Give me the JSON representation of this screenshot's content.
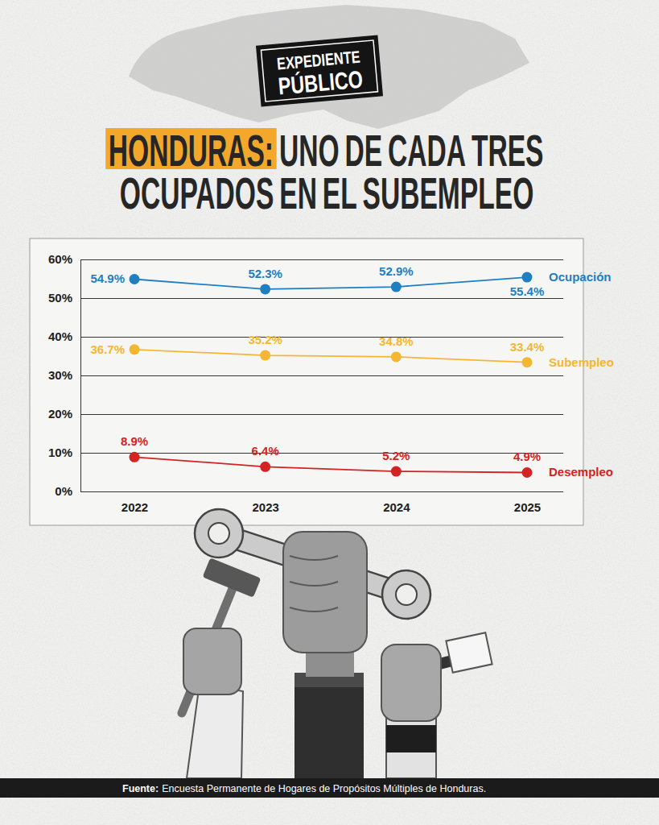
{
  "logo": [
    "EXPEDIENTE",
    "PÚBLICO"
  ],
  "chart_data": {
    "type": "line",
    "title": "HONDURAS: UNO DE CADA TRES OCUPADOS EN EL SUBEMPLEO",
    "categories": [
      "2022",
      "2023",
      "2024",
      "2025"
    ],
    "series": [
      {
        "name": "Ocupación",
        "color": "#1f7fc1",
        "values": [
          54.9,
          52.3,
          52.9,
          55.4
        ],
        "value_labels": [
          "54.9%",
          "52.3%",
          "52.9%",
          "55.4%"
        ]
      },
      {
        "name": "Subempleo",
        "color": "#f5b731",
        "values": [
          36.7,
          35.2,
          34.8,
          33.4
        ],
        "value_labels": [
          "36.7%",
          "35.2%",
          "34.8%",
          "33.4%"
        ]
      },
      {
        "name": "Desempleo",
        "color": "#d42323",
        "values": [
          8.9,
          6.4,
          5.2,
          4.9
        ],
        "value_labels": [
          "8.9%",
          "6.4%",
          "5.2%",
          "4.9%"
        ]
      }
    ],
    "ylim": [
      0,
      60
    ],
    "yticks": [
      {
        "value": 0,
        "label": "0%"
      },
      {
        "value": 10,
        "label": "10%"
      },
      {
        "value": 20,
        "label": "20%"
      },
      {
        "value": 30,
        "label": "30%"
      },
      {
        "value": 40,
        "label": "40%"
      },
      {
        "value": 50,
        "label": "50%"
      },
      {
        "value": 60,
        "label": "60%"
      }
    ],
    "grid": true,
    "data_labels": true,
    "marker": "circle"
  },
  "source": {
    "label": "Fuente:",
    "text": "Encuesta Permanente de Hogares de Propósitos Múltiples de Honduras."
  }
}
